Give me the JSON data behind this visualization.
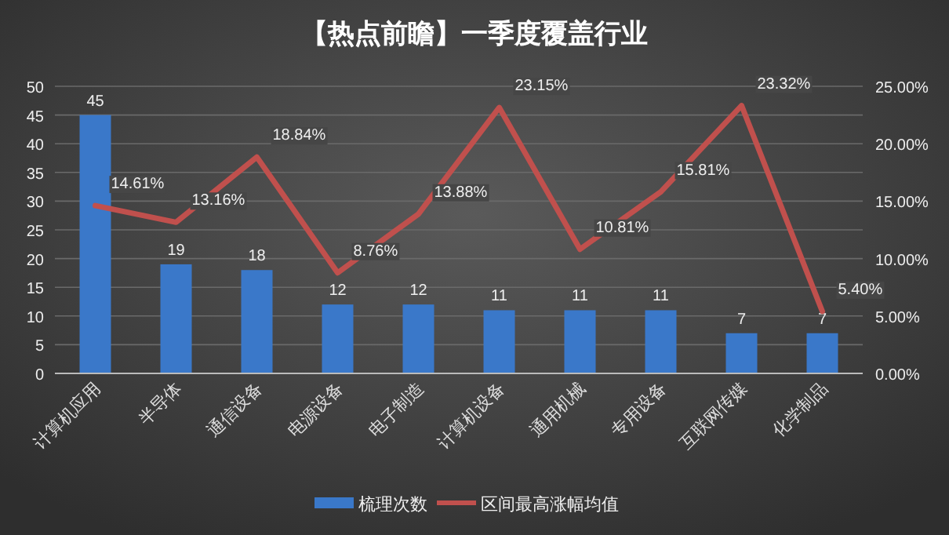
{
  "chart_data": {
    "type": "bar",
    "title": "【热点前瞻】一季度覆盖行业",
    "categories": [
      "计算机应用",
      "半导体",
      "通信设备",
      "电源设备",
      "电子制造",
      "计算机设备",
      "通用机械",
      "专用设备",
      "互联网传媒",
      "化学制品"
    ],
    "series": [
      {
        "name": "梳理次数",
        "color": "#3a78c9",
        "values": [
          45,
          19,
          18,
          12,
          12,
          11,
          11,
          11,
          7,
          7
        ],
        "value_labels": [
          "45",
          "19",
          "18",
          "12",
          "12",
          "11",
          "11",
          "11",
          "7",
          "7"
        ]
      },
      {
        "name": "区间最高涨幅均值",
        "type": "line",
        "axis": "y2",
        "color": "#c0504d",
        "values": [
          14.61,
          13.16,
          18.84,
          8.76,
          13.88,
          23.15,
          10.81,
          15.81,
          23.32,
          5.4
        ],
        "value_labels": [
          "14.61%",
          "13.16%",
          "18.84%",
          "8.76%",
          "13.88%",
          "23.15%",
          "10.81%",
          "15.81%",
          "23.32%",
          "5.40%"
        ]
      }
    ],
    "ylim": [
      0,
      50
    ],
    "yticks": [
      0,
      5,
      10,
      15,
      20,
      25,
      30,
      35,
      40,
      45,
      50
    ],
    "y2lim": [
      0,
      25
    ],
    "y2ticks": [
      {
        "value": 0,
        "label": "0.00%"
      },
      {
        "value": 5,
        "label": "5.00%"
      },
      {
        "value": 10,
        "label": "10.00%"
      },
      {
        "value": 15,
        "label": "15.00%"
      },
      {
        "value": 20,
        "label": "20.00%"
      },
      {
        "value": 25,
        "label": "25.00%"
      }
    ],
    "grid": "y",
    "legend": "bottom",
    "marker": "none",
    "line_style": "solid"
  }
}
